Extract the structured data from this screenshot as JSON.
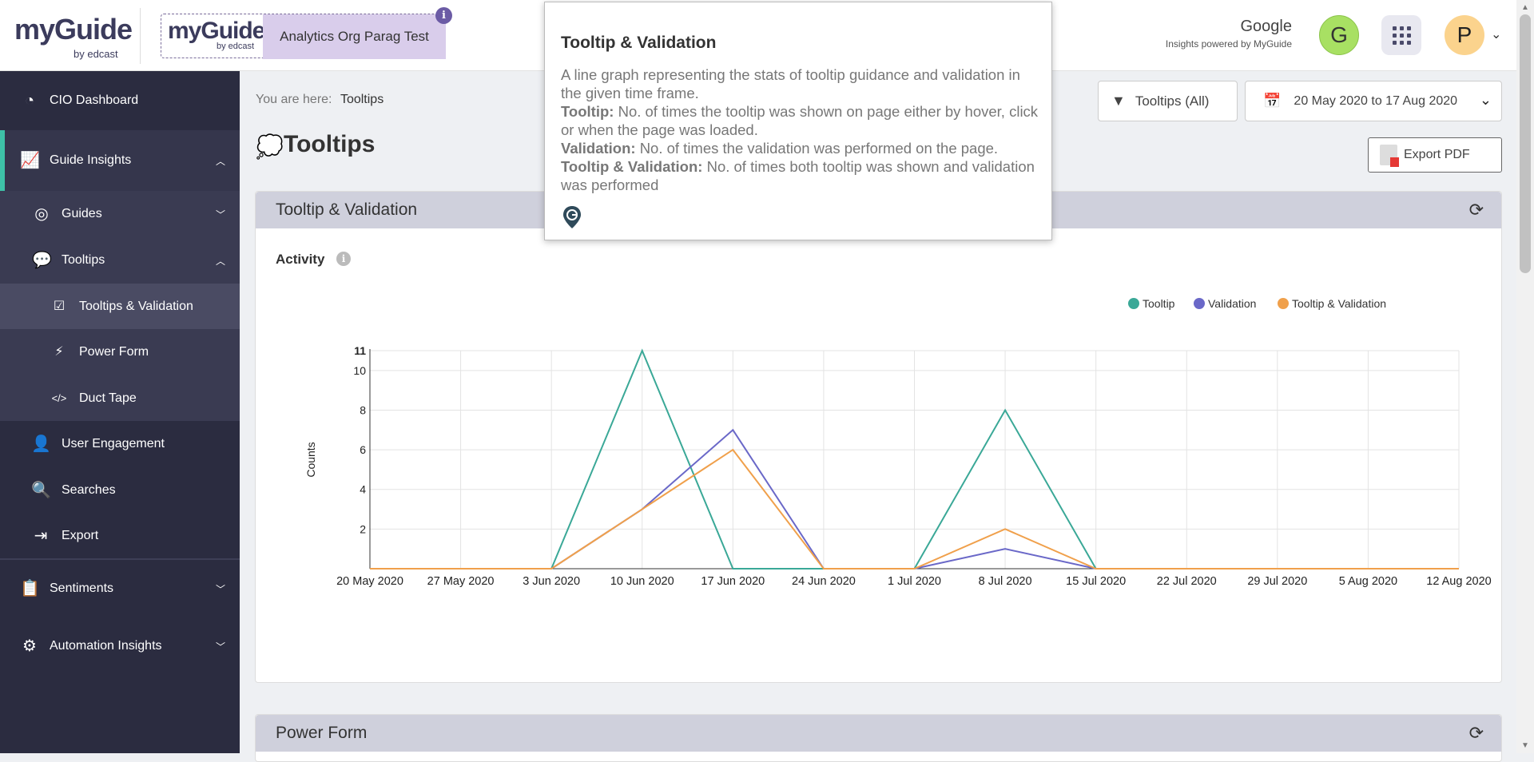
{
  "header": {
    "logo_text": "myGuide",
    "logo_sub": "by edcast",
    "org_logo_text": "myGuide",
    "org_logo_sub": "by edcast",
    "org_name": "Analytics Org Parag Test",
    "info_badge": "i",
    "brand_name": "Google",
    "brand_sub": "Insights powered by MyGuide",
    "brand_avatar": "G",
    "user_avatar": "P"
  },
  "sidebar": {
    "items": [
      {
        "label": "CIO Dashboard",
        "icon": "gauge-icon"
      },
      {
        "label": "Guide Insights",
        "icon": "chart-icon"
      },
      {
        "label": "Guides",
        "icon": "compass-icon"
      },
      {
        "label": "Tooltips",
        "icon": "chat-bubbles-icon"
      },
      {
        "label": "Tooltips & Validation",
        "icon": "check-square-icon"
      },
      {
        "label": "Power Form",
        "icon": "form-icon"
      },
      {
        "label": "Duct Tape",
        "icon": "code-icon"
      },
      {
        "label": "User Engagement",
        "icon": "user-icon"
      },
      {
        "label": "Searches",
        "icon": "search-doc-icon"
      },
      {
        "label": "Export",
        "icon": "export-icon"
      },
      {
        "label": "Sentiments",
        "icon": "clipboard-icon"
      },
      {
        "label": "Automation Insights",
        "icon": "gear-icon"
      }
    ]
  },
  "main": {
    "crumb_prefix": "You are here:",
    "crumb_current": "Tooltips",
    "page_title": "Tooltips",
    "filter_label": "Tooltips (All)",
    "date_range": "20 May 2020 to 17 Aug 2020",
    "export_label": "Export PDF",
    "card1_title": "Tooltip & Validation",
    "activity_label": "Activity",
    "card2_title": "Power Form"
  },
  "popup": {
    "title": "Tooltip & Validation",
    "intro": "A line graph representing the stats of tooltip guidance and validation in the given time frame.",
    "t1_label": "Tooltip:",
    "t1_text": "No. of times the tooltip was shown on page either by hover, click or when the page was loaded.",
    "t2_label": "Validation:",
    "t2_text": "No. of times the validation was performed on the page.",
    "t3_label": "Tooltip & Validation:",
    "t3_text": "No. of times both tooltip was shown and validation was performed"
  },
  "chart_data": {
    "type": "line",
    "ylabel": "Counts",
    "ylim": [
      0,
      11
    ],
    "yticks": [
      "2",
      "4",
      "6",
      "8",
      "10",
      "11"
    ],
    "categories": [
      "20 May 2020",
      "27 May 2020",
      "3 Jun 2020",
      "10 Jun 2020",
      "17 Jun 2020",
      "24 Jun 2020",
      "1 Jul 2020",
      "8 Jul 2020",
      "15 Jul 2020",
      "22 Jul 2020",
      "29 Jul 2020",
      "5 Aug 2020",
      "12 Aug 2020"
    ],
    "legend_position": "top-right",
    "grid": true,
    "series": [
      {
        "name": "Tooltip",
        "color": "#3aa897",
        "values": [
          0,
          0,
          0,
          11,
          0,
          0,
          0,
          8,
          0,
          0,
          0,
          0,
          0
        ]
      },
      {
        "name": "Validation",
        "color": "#6a68c8",
        "values": [
          0,
          0,
          0,
          3,
          7,
          0,
          0,
          1,
          0,
          0,
          0,
          0,
          0
        ]
      },
      {
        "name": "Tooltip & Validation",
        "color": "#f0a04b",
        "values": [
          0,
          0,
          0,
          3,
          6,
          0,
          0,
          2,
          0,
          0,
          0,
          0,
          0
        ]
      }
    ]
  }
}
